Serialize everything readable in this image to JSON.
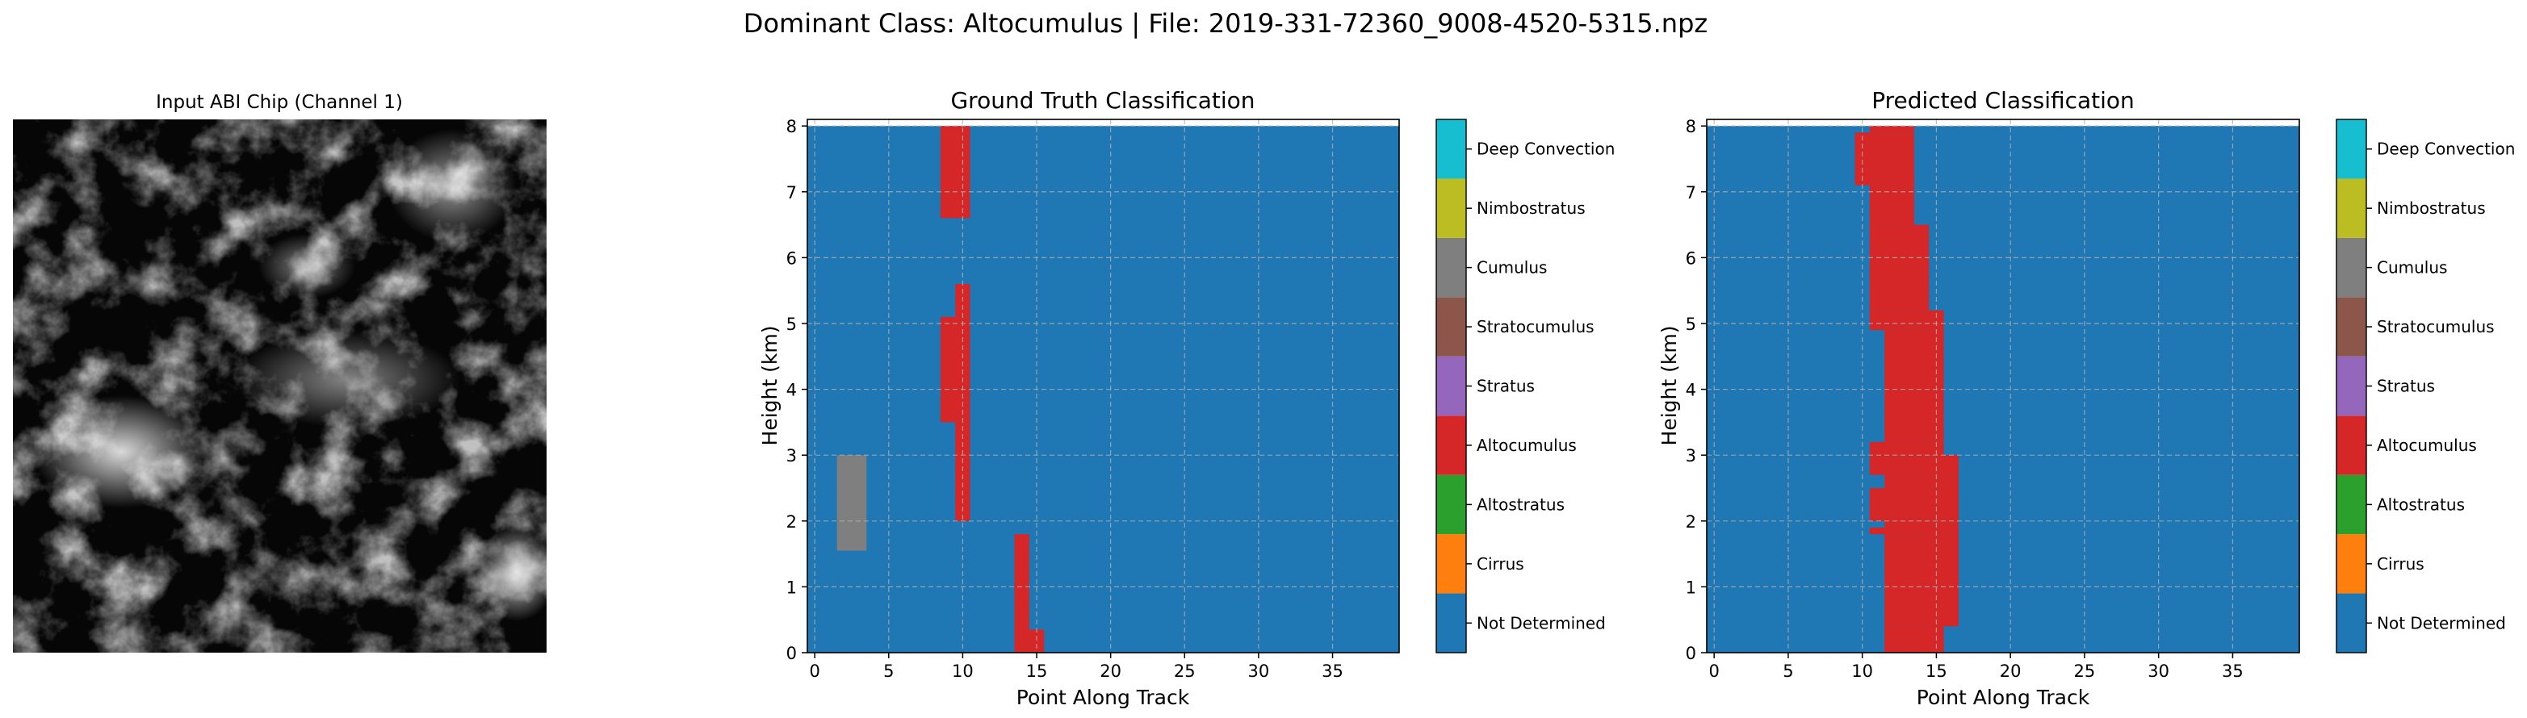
{
  "figure": {
    "suptitle": "Dominant Class: Altocumulus | File: 2019-331-72360_9008-4520-5315.npz"
  },
  "input_panel": {
    "title": "Input ABI Chip (Channel 1)"
  },
  "class_colors": {
    "Not Determined": "#1f77b4",
    "Cirrus": "#ff7f0e",
    "Altostratus": "#2ca02c",
    "Altocumulus": "#d62728",
    "Stratus": "#9467bd",
    "Stratocumulus": "#8c564b",
    "Cumulus": "#7f7f7f",
    "Nimbostratus": "#bcbd22",
    "Deep Convection": "#17becf"
  },
  "colorbar": {
    "labels": [
      "Not Determined",
      "Cirrus",
      "Altostratus",
      "Altocumulus",
      "Stratus",
      "Stratocumulus",
      "Cumulus",
      "Nimbostratus",
      "Deep Convection"
    ]
  },
  "chart_data": [
    {
      "type": "heatmap",
      "title": "Ground Truth Classification",
      "xlabel": "Point Along Track",
      "ylabel": "Height (km)",
      "xlim": [
        -0.5,
        39.5
      ],
      "ylim": [
        0,
        8.1
      ],
      "xticks": [
        0,
        5,
        10,
        15,
        20,
        25,
        30,
        35
      ],
      "yticks": [
        0,
        1,
        2,
        3,
        4,
        5,
        6,
        7,
        8
      ],
      "grid": true,
      "background_class": "Not Determined",
      "regions": [
        {
          "class": "Altocumulus",
          "x": [
            8.5,
            10.5
          ],
          "y": [
            6.6,
            8.0
          ]
        },
        {
          "class": "Altocumulus",
          "x": [
            9.5,
            10.5
          ],
          "y": [
            5.1,
            5.6
          ]
        },
        {
          "class": "Altocumulus",
          "x": [
            8.5,
            10.5
          ],
          "y": [
            3.5,
            5.1
          ]
        },
        {
          "class": "Altocumulus",
          "x": [
            9.5,
            10.5
          ],
          "y": [
            2.0,
            3.5
          ]
        },
        {
          "class": "Cumulus",
          "x": [
            1.5,
            3.5
          ],
          "y": [
            1.55,
            3.0
          ]
        },
        {
          "class": "Altocumulus",
          "x": [
            13.5,
            14.5
          ],
          "y": [
            0.3,
            1.8
          ]
        },
        {
          "class": "Altocumulus",
          "x": [
            13.5,
            15.5
          ],
          "y": [
            0.0,
            0.35
          ]
        }
      ]
    },
    {
      "type": "heatmap",
      "title": "Predicted Classification",
      "xlabel": "Point Along Track",
      "ylabel": "Height (km)",
      "xlim": [
        -0.5,
        39.5
      ],
      "ylim": [
        0,
        8.1
      ],
      "xticks": [
        0,
        5,
        10,
        15,
        20,
        25,
        30,
        35
      ],
      "yticks": [
        0,
        1,
        2,
        3,
        4,
        5,
        6,
        7,
        8
      ],
      "grid": true,
      "background_class": "Not Determined",
      "regions": [
        {
          "class": "Altocumulus",
          "x": [
            10.5,
            13.5
          ],
          "y": [
            7.9,
            8.0
          ]
        },
        {
          "class": "Altocumulus",
          "x": [
            9.5,
            13.5
          ],
          "y": [
            7.1,
            7.9
          ]
        },
        {
          "class": "Altocumulus",
          "x": [
            10.5,
            13.5
          ],
          "y": [
            6.5,
            7.1
          ]
        },
        {
          "class": "Altocumulus",
          "x": [
            10.5,
            14.5
          ],
          "y": [
            5.2,
            6.5
          ]
        },
        {
          "class": "Altocumulus",
          "x": [
            10.5,
            15.5
          ],
          "y": [
            4.9,
            5.2
          ]
        },
        {
          "class": "Altocumulus",
          "x": [
            11.5,
            15.5
          ],
          "y": [
            3.2,
            4.9
          ]
        },
        {
          "class": "Altocumulus",
          "x": [
            10.5,
            15.5
          ],
          "y": [
            3.0,
            3.2
          ]
        },
        {
          "class": "Altocumulus",
          "x": [
            10.5,
            16.5
          ],
          "y": [
            2.7,
            3.0
          ]
        },
        {
          "class": "Altocumulus",
          "x": [
            11.5,
            16.5
          ],
          "y": [
            2.5,
            2.7
          ]
        },
        {
          "class": "Altocumulus",
          "x": [
            10.5,
            16.5
          ],
          "y": [
            2.0,
            2.5
          ]
        },
        {
          "class": "Altocumulus",
          "x": [
            11.5,
            16.5
          ],
          "y": [
            1.9,
            2.0
          ]
        },
        {
          "class": "Altocumulus",
          "x": [
            10.5,
            16.5
          ],
          "y": [
            1.8,
            1.9
          ]
        },
        {
          "class": "Altocumulus",
          "x": [
            11.5,
            16.5
          ],
          "y": [
            0.4,
            1.8
          ]
        },
        {
          "class": "Altocumulus",
          "x": [
            11.5,
            15.5
          ],
          "y": [
            0.0,
            0.4
          ]
        }
      ]
    }
  ]
}
